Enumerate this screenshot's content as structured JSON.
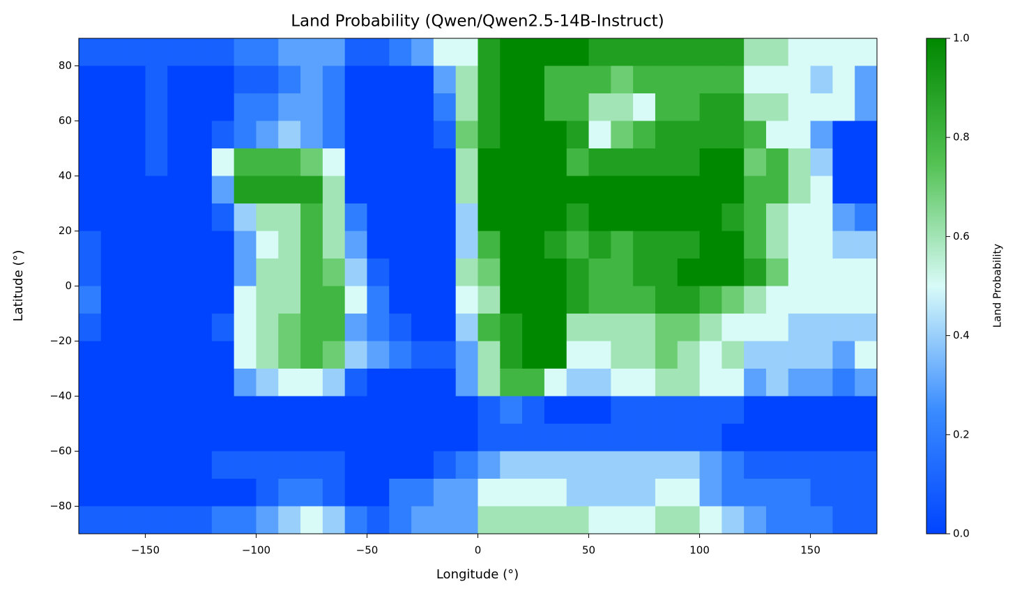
{
  "chart_data": {
    "type": "heatmap",
    "title": "Land Probability (Qwen/Qwen2.5-14B-Instruct)",
    "x_label": "Longitude (°)",
    "y_label": "Latitude (°)",
    "xlim": [
      -180,
      180
    ],
    "ylim": [
      -90,
      90
    ],
    "xticks": [
      {
        "value": -150,
        "label": "−150"
      },
      {
        "value": -100,
        "label": "−100"
      },
      {
        "value": -50,
        "label": "−50"
      },
      0,
      50,
      100,
      150
    ],
    "yticks": [
      {
        "value": -80,
        "label": "−80"
      },
      {
        "value": -60,
        "label": "−60"
      },
      {
        "value": -40,
        "label": "−40"
      },
      {
        "value": -20,
        "label": "−20"
      },
      0,
      20,
      40,
      60,
      80
    ],
    "colormap": [
      "#0044ff",
      "#3a8cff",
      "#d8fbf8",
      "#52c152",
      "#008800"
    ],
    "colorbar": {
      "label": "Land Probability",
      "lim": [
        0,
        1
      ],
      "ticks": [
        {
          "value": 0,
          "label": "0.0"
        },
        0.2,
        0.4,
        0.6,
        0.8,
        {
          "value": 1,
          "label": "1.0"
        }
      ]
    },
    "values": [
      [
        0.1,
        0.1,
        0.1,
        0.1,
        0.1,
        0.1,
        0.1,
        0.2,
        0.2,
        0.3,
        0.3,
        0.3,
        0.1,
        0.1,
        0.2,
        0.3,
        0.5,
        0.5,
        0.9,
        1,
        1,
        1,
        1,
        0.9,
        0.9,
        0.9,
        0.9,
        0.9,
        0.9,
        0.9,
        0.6,
        0.6,
        0.5,
        0.5,
        0.5,
        0.5
      ],
      [
        0,
        0,
        0,
        0.1,
        0,
        0,
        0,
        0.1,
        0.1,
        0.2,
        0.3,
        0.2,
        0,
        0,
        0,
        0,
        0.3,
        0.6,
        0.9,
        1,
        1,
        0.8,
        0.8,
        0.8,
        0.7,
        0.8,
        0.8,
        0.8,
        0.8,
        0.8,
        0.5,
        0.5,
        0.5,
        0.4,
        0.5,
        0.3
      ],
      [
        0,
        0,
        0,
        0.1,
        0,
        0,
        0,
        0.2,
        0.2,
        0.3,
        0.3,
        0.2,
        0,
        0,
        0,
        0,
        0.2,
        0.6,
        0.9,
        1,
        1,
        0.8,
        0.8,
        0.6,
        0.6,
        0.5,
        0.8,
        0.8,
        0.9,
        0.9,
        0.6,
        0.6,
        0.5,
        0.5,
        0.5,
        0.3
      ],
      [
        0,
        0,
        0,
        0.1,
        0,
        0,
        0.1,
        0.2,
        0.3,
        0.4,
        0.3,
        0.2,
        0,
        0,
        0,
        0,
        0.1,
        0.7,
        0.9,
        1,
        1,
        1,
        0.9,
        0.5,
        0.7,
        0.8,
        0.9,
        0.9,
        0.9,
        0.9,
        0.8,
        0.5,
        0.5,
        0.3,
        0,
        0
      ],
      [
        0,
        0,
        0,
        0.1,
        0,
        0,
        0.5,
        0.8,
        0.8,
        0.8,
        0.7,
        0.5,
        0,
        0,
        0,
        0,
        0,
        0.6,
        1,
        1,
        1,
        1,
        0.8,
        0.9,
        0.9,
        0.9,
        0.9,
        0.9,
        1,
        1,
        0.7,
        0.8,
        0.6,
        0.4,
        0,
        0
      ],
      [
        0,
        0,
        0,
        0,
        0,
        0,
        0.3,
        0.9,
        0.9,
        0.9,
        0.9,
        0.6,
        0,
        0,
        0,
        0,
        0,
        0.6,
        1,
        1,
        1,
        1,
        1,
        1,
        1,
        1,
        1,
        1,
        1,
        1,
        0.8,
        0.8,
        0.6,
        0.5,
        0,
        0
      ],
      [
        0,
        0,
        0,
        0,
        0,
        0,
        0.1,
        0.4,
        0.6,
        0.6,
        0.8,
        0.6,
        0.2,
        0,
        0,
        0,
        0,
        0.4,
        1,
        1,
        1,
        1,
        0.9,
        1,
        1,
        1,
        1,
        1,
        1,
        0.9,
        0.8,
        0.6,
        0.5,
        0.5,
        0.3,
        0.2
      ],
      [
        0.1,
        0,
        0,
        0,
        0,
        0,
        0,
        0.3,
        0.5,
        0.6,
        0.8,
        0.6,
        0.3,
        0,
        0,
        0,
        0,
        0.4,
        0.8,
        1,
        1,
        0.9,
        0.8,
        0.9,
        0.8,
        0.9,
        0.9,
        0.9,
        1,
        1,
        0.8,
        0.6,
        0.5,
        0.5,
        0.4,
        0.4
      ],
      [
        0.1,
        0,
        0,
        0,
        0,
        0,
        0,
        0.3,
        0.6,
        0.6,
        0.8,
        0.7,
        0.4,
        0.1,
        0,
        0,
        0,
        0.6,
        0.7,
        1,
        1,
        1,
        0.9,
        0.8,
        0.8,
        0.9,
        0.9,
        1,
        1,
        1,
        0.9,
        0.7,
        0.5,
        0.5,
        0.5,
        0.5
      ],
      [
        0.2,
        0,
        0,
        0,
        0,
        0,
        0,
        0.5,
        0.6,
        0.6,
        0.8,
        0.8,
        0.5,
        0.2,
        0,
        0,
        0,
        0.5,
        0.6,
        1,
        1,
        1,
        0.9,
        0.8,
        0.8,
        0.8,
        0.9,
        0.9,
        0.8,
        0.7,
        0.6,
        0.5,
        0.5,
        0.5,
        0.5,
        0.5
      ],
      [
        0.1,
        0,
        0,
        0,
        0,
        0,
        0.1,
        0.5,
        0.6,
        0.7,
        0.8,
        0.8,
        0.3,
        0.2,
        0.1,
        0,
        0,
        0.4,
        0.8,
        0.9,
        1,
        1,
        0.6,
        0.6,
        0.6,
        0.6,
        0.7,
        0.7,
        0.6,
        0.5,
        0.5,
        0.5,
        0.4,
        0.4,
        0.4,
        0.4
      ],
      [
        0,
        0,
        0,
        0,
        0,
        0,
        0,
        0.5,
        0.6,
        0.7,
        0.8,
        0.7,
        0.4,
        0.3,
        0.2,
        0.1,
        0.1,
        0.3,
        0.6,
        0.9,
        1,
        1,
        0.5,
        0.5,
        0.6,
        0.6,
        0.7,
        0.6,
        0.5,
        0.6,
        0.4,
        0.4,
        0.4,
        0.4,
        0.3,
        0.5
      ],
      [
        0,
        0,
        0,
        0,
        0,
        0,
        0,
        0.3,
        0.4,
        0.5,
        0.5,
        0.4,
        0.1,
        0,
        0,
        0,
        0,
        0.3,
        0.6,
        0.8,
        0.8,
        0.5,
        0.4,
        0.4,
        0.5,
        0.5,
        0.6,
        0.6,
        0.5,
        0.5,
        0.3,
        0.4,
        0.3,
        0.3,
        0.2,
        0.3
      ],
      [
        0,
        0,
        0,
        0,
        0,
        0,
        0,
        0,
        0,
        0,
        0,
        0,
        0,
        0,
        0,
        0,
        0,
        0,
        0.1,
        0.2,
        0.1,
        0,
        0,
        0,
        0.1,
        0.1,
        0.1,
        0.1,
        0.1,
        0.1,
        0,
        0,
        0,
        0,
        0,
        0
      ],
      [
        0,
        0,
        0,
        0,
        0,
        0,
        0,
        0,
        0,
        0,
        0,
        0,
        0,
        0,
        0,
        0,
        0,
        0,
        0.1,
        0.1,
        0.1,
        0.1,
        0.1,
        0.1,
        0.1,
        0.1,
        0.1,
        0.1,
        0.1,
        0,
        0,
        0,
        0,
        0,
        0,
        0
      ],
      [
        0,
        0,
        0,
        0,
        0,
        0,
        0.1,
        0.1,
        0.1,
        0.1,
        0.1,
        0.1,
        0,
        0,
        0,
        0,
        0.1,
        0.2,
        0.3,
        0.4,
        0.4,
        0.4,
        0.4,
        0.4,
        0.4,
        0.4,
        0.4,
        0.4,
        0.3,
        0.2,
        0.1,
        0.1,
        0.1,
        0.1,
        0.1,
        0.1
      ],
      [
        0,
        0,
        0,
        0,
        0,
        0,
        0,
        0,
        0.1,
        0.2,
        0.2,
        0.1,
        0,
        0,
        0.2,
        0.2,
        0.3,
        0.3,
        0.5,
        0.5,
        0.5,
        0.5,
        0.4,
        0.4,
        0.4,
        0.4,
        0.5,
        0.5,
        0.3,
        0.2,
        0.2,
        0.2,
        0.2,
        0.1,
        0.1,
        0.1
      ],
      [
        0.1,
        0.1,
        0.1,
        0.1,
        0.1,
        0.1,
        0.2,
        0.2,
        0.3,
        0.4,
        0.5,
        0.4,
        0.2,
        0.1,
        0.2,
        0.3,
        0.3,
        0.3,
        0.6,
        0.6,
        0.6,
        0.6,
        0.6,
        0.5,
        0.5,
        0.5,
        0.6,
        0.6,
        0.5,
        0.4,
        0.3,
        0.2,
        0.2,
        0.2,
        0.1,
        0.1
      ]
    ]
  }
}
